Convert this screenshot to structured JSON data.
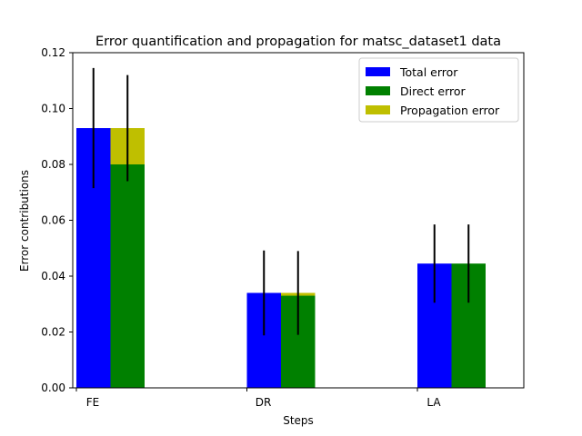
{
  "chart_data": {
    "type": "bar",
    "title": "Error quantification and propagation for matsc_dataset1 data",
    "xlabel": "Steps",
    "ylabel": "Error contributions",
    "categories": [
      "FE",
      "DR",
      "LA"
    ],
    "ylim": [
      0,
      0.12
    ],
    "yticks": [
      "0.00",
      "0.02",
      "0.04",
      "0.06",
      "0.08",
      "0.10",
      "0.12"
    ],
    "grid": false,
    "legend_position": "top-right",
    "series": [
      {
        "name": "Total error",
        "color": "#0000ff",
        "values": [
          0.093,
          0.034,
          0.0445
        ],
        "error": [
          0.0215,
          0.0152,
          0.014
        ]
      },
      {
        "name": "Direct error",
        "color": "#008000",
        "values": [
          0.08,
          0.033,
          0.0445
        ],
        "error": [
          0.019,
          0.015,
          0.014
        ]
      },
      {
        "name": "Propagation error",
        "color": "#bfbf00",
        "values": [
          0.013,
          0.001,
          0.0
        ],
        "stacked_on": "Direct error"
      }
    ]
  }
}
